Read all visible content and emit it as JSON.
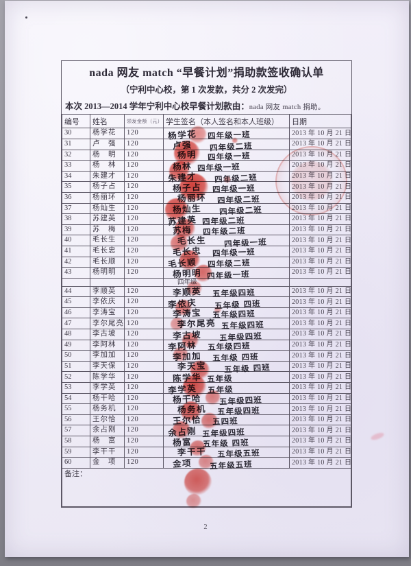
{
  "document": {
    "title": "nada 网友  match  “早餐计划”捐助款签收确认单",
    "subtitle": "（宁利中心校，第 1 次发款，共分 2 次发完）",
    "donor_line_prefix": "本次 2013—2014 学年宁利中心校早餐计划款由：",
    "donor_line_suffix": "nada 网友  match 捐助。",
    "page_number": "2"
  },
  "colors": {
    "paper": "#f1eef8",
    "printed_ink": "#3d3845",
    "handwriting_ink": "#2c2a35",
    "stamp_red": "#d5241a",
    "table_border": "#5c5765"
  },
  "table": {
    "headers": [
      "编号",
      "姓名",
      "领发金额（元）",
      "学生签名（本人签名和本人班级）",
      "日期"
    ],
    "remarks_label": "备注：",
    "rows": [
      {
        "type": "data",
        "no": "30",
        "name": "杨学花",
        "amount": "120",
        "signature": "杨学花",
        "cls": "四年级一班",
        "date": "2013 年 10 月 21 日"
      },
      {
        "type": "data",
        "no": "31",
        "name": "卢　强",
        "amount": "120",
        "signature": "卢强",
        "cls": "四年级二班",
        "date": "2013 年 10 月 21 日"
      },
      {
        "type": "data",
        "no": "32",
        "name": "杨　明",
        "amount": "120",
        "signature": "杨明",
        "cls": "四年级一班",
        "date": "2013 年 10 月 21 日"
      },
      {
        "type": "data",
        "no": "33",
        "name": "杨　林",
        "amount": "120",
        "signature": "杨林",
        "cls": "四年级一班",
        "date": "2013 年 10 月 21 日"
      },
      {
        "type": "data",
        "no": "34",
        "name": "朱建才",
        "amount": "120",
        "signature": "朱建才",
        "cls": "四年级二班",
        "date": "2013 年 10 月 21 日"
      },
      {
        "type": "data",
        "no": "35",
        "name": "杨子占",
        "amount": "120",
        "signature": "杨子占",
        "cls": "四年级一班",
        "date": "2013 年 10 月 21 日"
      },
      {
        "type": "data",
        "no": "36",
        "name": "杨丽环",
        "amount": "120",
        "signature": "杨丽环",
        "cls": "四年级二班",
        "date": "2013 年 10 月 21 日"
      },
      {
        "type": "data",
        "no": "37",
        "name": "杨灿生",
        "amount": "120",
        "signature": "杨灿生",
        "cls": "四年级二班",
        "date": "2013 年 10 月 21 日"
      },
      {
        "type": "data",
        "no": "38",
        "name": "苏建英",
        "amount": "120",
        "signature": "苏建英",
        "cls": "四年级二班",
        "date": "2013 年 10 月 21 日"
      },
      {
        "type": "data",
        "no": "39",
        "name": "苏　梅",
        "amount": "120",
        "signature": "苏梅",
        "cls": "四年级二班",
        "date": "2013 年 10 月 21 日"
      },
      {
        "type": "data",
        "no": "40",
        "name": "毛长生",
        "amount": "120",
        "signature": "毛长生",
        "cls": "四年级一班",
        "date": "2013 年 10 月 21 日"
      },
      {
        "type": "data",
        "no": "41",
        "name": "毛长忠",
        "amount": "120",
        "signature": "毛长忠",
        "cls": "四年级一班",
        "date": "2013 年 10 月 21 日"
      },
      {
        "type": "data",
        "no": "42",
        "name": "毛长顺",
        "amount": "120",
        "signature": "毛长顺",
        "cls": "四年级二班",
        "date": "2013 年 10 月 21 日"
      },
      {
        "type": "data",
        "no": "43",
        "name": "杨明明",
        "amount": "120",
        "signature": "杨明明",
        "cls": "四年级一班",
        "date": "2013 年 10 月 21 日"
      },
      {
        "type": "label",
        "no": "",
        "name": "",
        "amount": "",
        "signature": "四年级",
        "cls": "",
        "date": ""
      },
      {
        "type": "data",
        "no": "44",
        "name": "李顺英",
        "amount": "120",
        "signature": "李顺英",
        "cls": "五年级四班",
        "date": "2013 年 10 月 21 日"
      },
      {
        "type": "data",
        "no": "45",
        "name": "李依庆",
        "amount": "120",
        "signature": "李依庆",
        "cls": "五年级 四班",
        "date": "2013 年 10 月 21 日"
      },
      {
        "type": "data",
        "no": "46",
        "name": "李涛宝",
        "amount": "120",
        "signature": "李涛宝",
        "cls": "五年级四班",
        "date": "2013 年 10 月 21 日"
      },
      {
        "type": "data",
        "no": "47",
        "name": "李尔尾亮",
        "amount": "120",
        "signature": "李尔尾亮",
        "cls": "五年级四班",
        "date": "2013 年 10 月 21 日"
      },
      {
        "type": "data",
        "no": "48",
        "name": "李古坡",
        "amount": "120",
        "signature": "李古坡",
        "cls": "五年级四班",
        "date": "2013 年 10 月 21 日"
      },
      {
        "type": "data",
        "no": "49",
        "name": "李阿林",
        "amount": "120",
        "signature": "李阿林",
        "cls": "五年级四班",
        "date": "2013 年 10 月 21 日"
      },
      {
        "type": "data",
        "no": "50",
        "name": "李加加",
        "amount": "120",
        "signature": "李加加",
        "cls": "五年级 四班",
        "date": "2013 年 10 月 21 日"
      },
      {
        "type": "data",
        "no": "51",
        "name": "李天保",
        "amount": "120",
        "signature": "李天宝",
        "cls": "五年级 四班",
        "date": "2013 年 10 月 21 日"
      },
      {
        "type": "data",
        "no": "52",
        "name": "陈学华",
        "amount": "120",
        "signature": "陈学华",
        "cls": "五年级",
        "date": "2013 年 10 月 21 日"
      },
      {
        "type": "data",
        "no": "53",
        "name": "李学英",
        "amount": "120",
        "signature": "李学英",
        "cls": "五年级",
        "date": "2013 年 10 月 21 日"
      },
      {
        "type": "data",
        "no": "54",
        "name": "杨干哈",
        "amount": "120",
        "signature": "杨干哈",
        "cls": "五年级四班",
        "date": "2013 年 10 月 21 日"
      },
      {
        "type": "data",
        "no": "55",
        "name": "杨务机",
        "amount": "120",
        "signature": "杨务机",
        "cls": "五年级四班",
        "date": "2013 年 10 月 21 日"
      },
      {
        "type": "data",
        "no": "56",
        "name": "王尔恰",
        "amount": "120",
        "signature": "王尔恰",
        "cls": "五四班",
        "date": "2013 年 10 月 21 日"
      },
      {
        "type": "data",
        "no": "57",
        "name": "余占刚",
        "amount": "120",
        "signature": "余占刚",
        "cls": "五年级四班",
        "date": "2013 年 10 月 21 日"
      },
      {
        "type": "data",
        "no": "58",
        "name": "杨　富",
        "amount": "120",
        "signature": "杨富",
        "cls": "五年级 四班",
        "date": "2013 年 10 月 21 日"
      },
      {
        "type": "data",
        "no": "59",
        "name": "李干干",
        "amount": "120",
        "signature": "李干干",
        "cls": "五年级五班",
        "date": "2013 年 10 月 21 日"
      },
      {
        "type": "data",
        "no": "60",
        "name": "金　项",
        "amount": "120",
        "signature": "金项",
        "cls": "五年级五班",
        "date": "2013 年 10 月 21 日"
      }
    ]
  }
}
